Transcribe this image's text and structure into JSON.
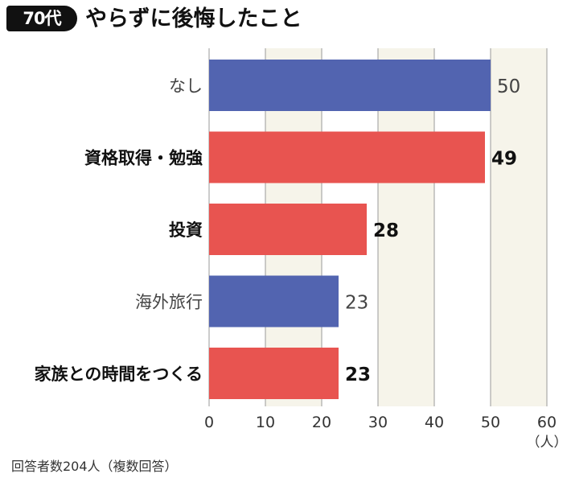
{
  "header": {
    "badge": "70代",
    "title": "やらずに後悔したこと"
  },
  "footnote": "回答者数204人（複数回答）",
  "colors": {
    "blue": "#5264b0",
    "red": "#e85450",
    "band": "#f6f4ea",
    "grid": "#9a9a9a"
  },
  "chart_data": {
    "type": "bar",
    "orientation": "horizontal",
    "categories": [
      "なし",
      "資格取得・勉強",
      "投資",
      "海外旅行",
      "家族との時間をつくる"
    ],
    "values": [
      50,
      49,
      28,
      23,
      23
    ],
    "bar_colors": [
      "blue",
      "red",
      "red",
      "blue",
      "red"
    ],
    "bold": [
      false,
      true,
      true,
      false,
      true
    ],
    "xlim": [
      0,
      60
    ],
    "xticks": [
      0,
      10,
      20,
      30,
      40,
      50,
      60
    ],
    "unit": "（人）",
    "grid": true
  }
}
